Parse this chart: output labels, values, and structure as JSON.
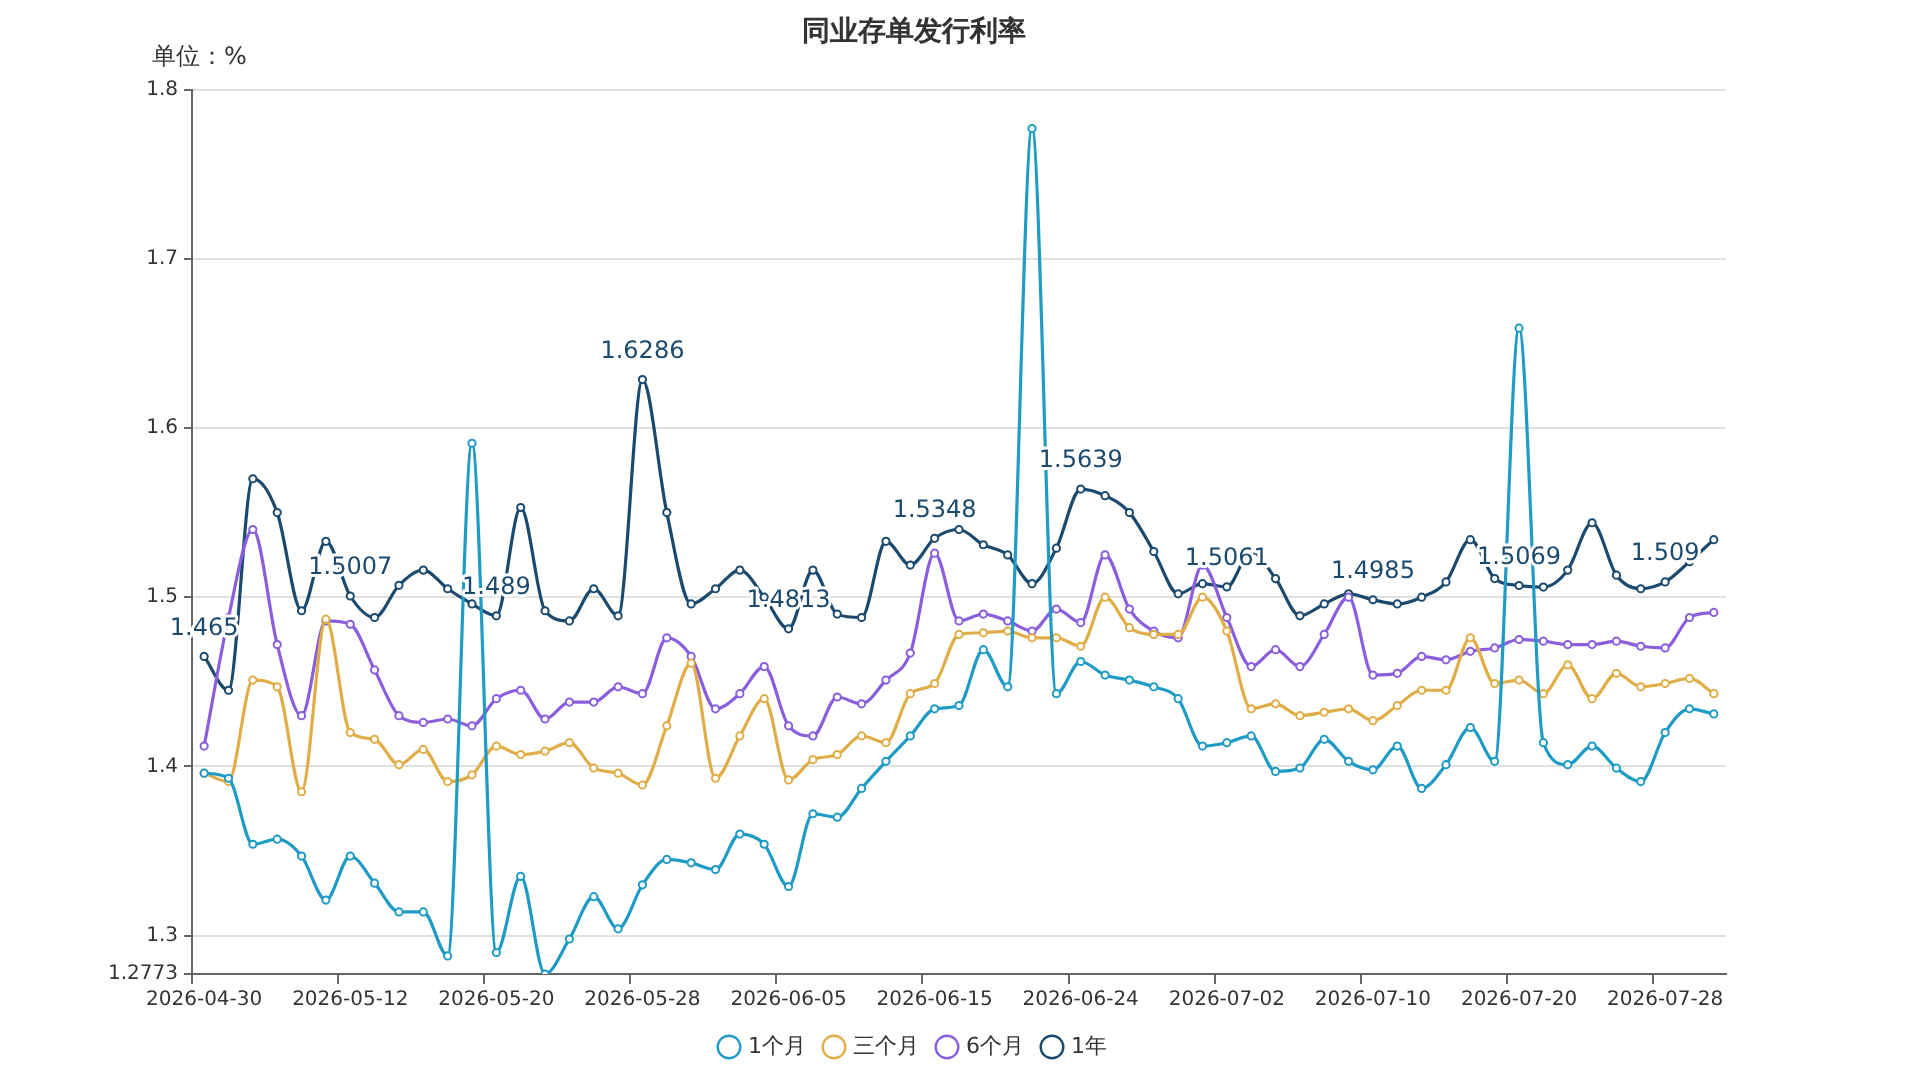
{
  "chart_data": {
    "type": "line",
    "title": "同业存单发行利率",
    "ylabel": "单位：%",
    "categories": [
      "2026-04-30",
      null,
      null,
      null,
      null,
      null,
      "2026-05-12",
      null,
      null,
      null,
      null,
      null,
      "2026-05-20",
      null,
      null,
      null,
      null,
      null,
      "2026-05-28",
      null,
      null,
      null,
      null,
      null,
      "2026-06-05",
      null,
      null,
      null,
      null,
      null,
      "2026-06-15",
      null,
      null,
      null,
      null,
      null,
      "2026-06-24",
      null,
      null,
      null,
      null,
      null,
      "2026-07-02",
      null,
      null,
      null,
      null,
      null,
      "2026-07-10",
      null,
      null,
      null,
      null,
      null,
      "2026-07-20",
      null,
      null,
      null,
      null,
      null,
      "2026-07-28",
      null,
      null
    ],
    "series": [
      {
        "name": "1个月",
        "color": "#1f9bc4",
        "values": [
          1.396,
          1.393,
          1.354,
          1.357,
          1.347,
          1.321,
          1.347,
          1.331,
          1.314,
          1.314,
          1.288,
          1.591,
          1.29,
          1.335,
          1.2773,
          1.298,
          1.323,
          1.304,
          1.33,
          1.345,
          1.343,
          1.339,
          1.36,
          1.354,
          1.329,
          1.372,
          1.37,
          1.387,
          1.403,
          1.418,
          1.434,
          1.436,
          1.469,
          1.447,
          1.777,
          1.443,
          1.462,
          1.454,
          1.451,
          1.447,
          1.44,
          1.412,
          1.414,
          1.418,
          1.397,
          1.399,
          1.416,
          1.403,
          1.398,
          1.412,
          1.387,
          1.401,
          1.423,
          1.403,
          1.659,
          1.414,
          1.401,
          1.412,
          1.399,
          1.391,
          1.42,
          1.434,
          1.431
        ]
      },
      {
        "name": "三个月",
        "color": "#e0ae48",
        "values": [
          1.396,
          1.391,
          1.451,
          1.447,
          1.385,
          1.487,
          1.42,
          1.416,
          1.401,
          1.41,
          1.391,
          1.395,
          1.412,
          1.407,
          1.409,
          1.414,
          1.399,
          1.396,
          1.389,
          1.424,
          1.461,
          1.393,
          1.418,
          1.44,
          1.392,
          1.404,
          1.407,
          1.418,
          1.414,
          1.443,
          1.449,
          1.478,
          1.479,
          1.48,
          1.476,
          1.476,
          1.471,
          1.5,
          1.482,
          1.478,
          1.478,
          1.5,
          1.48,
          1.434,
          1.437,
          1.43,
          1.432,
          1.434,
          1.427,
          1.436,
          1.445,
          1.445,
          1.476,
          1.449,
          1.451,
          1.443,
          1.46,
          1.44,
          1.455,
          1.447,
          1.449,
          1.452,
          1.443
        ]
      },
      {
        "name": "6个月",
        "color": "#8b5fdc",
        "values": [
          1.412,
          1.488,
          1.54,
          1.472,
          1.43,
          1.486,
          1.484,
          1.457,
          1.43,
          1.426,
          1.428,
          1.424,
          1.44,
          1.445,
          1.428,
          1.438,
          1.438,
          1.447,
          1.443,
          1.476,
          1.465,
          1.434,
          1.443,
          1.459,
          1.424,
          1.418,
          1.441,
          1.437,
          1.451,
          1.467,
          1.526,
          1.486,
          1.49,
          1.486,
          1.48,
          1.493,
          1.485,
          1.525,
          1.493,
          1.48,
          1.476,
          1.519,
          1.488,
          1.459,
          1.469,
          1.459,
          1.478,
          1.5,
          1.454,
          1.455,
          1.465,
          1.463,
          1.468,
          1.47,
          1.475,
          1.474,
          1.472,
          1.472,
          1.474,
          1.471,
          1.47,
          1.488,
          1.491
        ]
      },
      {
        "name": "1年",
        "color": "#1b4a6e",
        "values": [
          1.465,
          1.445,
          1.57,
          1.55,
          1.492,
          1.533,
          1.5007,
          1.488,
          1.507,
          1.516,
          1.505,
          1.496,
          1.489,
          1.553,
          1.492,
          1.486,
          1.505,
          1.489,
          1.6286,
          1.55,
          1.496,
          1.505,
          1.516,
          1.5,
          1.4813,
          1.516,
          1.49,
          1.488,
          1.533,
          1.519,
          1.5348,
          1.54,
          1.531,
          1.525,
          1.508,
          1.529,
          1.5639,
          1.56,
          1.55,
          1.527,
          1.502,
          1.508,
          1.5061,
          1.527,
          1.511,
          1.489,
          1.496,
          1.502,
          1.4985,
          1.496,
          1.5,
          1.509,
          1.534,
          1.511,
          1.5069,
          1.506,
          1.516,
          1.544,
          1.513,
          1.505,
          1.509,
          1.521,
          1.534
        ],
        "value_labels": [
          "1.465",
          null,
          null,
          null,
          null,
          null,
          "1.5007",
          null,
          null,
          null,
          null,
          null,
          "1.489",
          null,
          null,
          null,
          null,
          null,
          "1.6286",
          null,
          null,
          null,
          null,
          null,
          "1.4813",
          null,
          null,
          null,
          null,
          null,
          "1.5348",
          null,
          null,
          null,
          null,
          null,
          "1.5639",
          null,
          null,
          null,
          null,
          null,
          "1.5061",
          null,
          null,
          null,
          null,
          null,
          "1.4985",
          null,
          null,
          null,
          null,
          null,
          "1.5069",
          null,
          null,
          null,
          null,
          null,
          "1.509",
          null,
          null
        ]
      }
    ],
    "ylim": [
      1.2773,
      1.8
    ],
    "yticks": [
      1.2773,
      1.3,
      1.4,
      1.5,
      1.6,
      1.7,
      1.8
    ],
    "grid": "y",
    "legend": "bottom",
    "marker": "circle",
    "line_style": "solid"
  }
}
